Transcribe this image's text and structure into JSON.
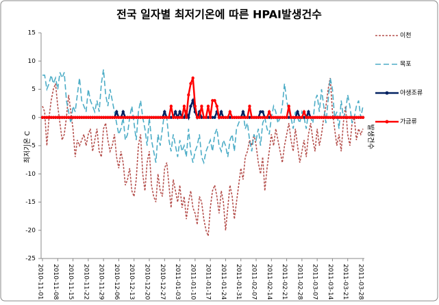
{
  "chart_data": {
    "type": "line",
    "title": "전국 일자별 최저기온에 따른 HPAI발생건수",
    "y_label": "최저기온 C",
    "y2_label": "발생건수",
    "ylim": [
      -25,
      15
    ],
    "yticks": [
      -25,
      -20,
      -15,
      -10,
      -5,
      0,
      5,
      10,
      15
    ],
    "categories": [
      "2010-11-01",
      null,
      null,
      null,
      null,
      null,
      null,
      "2010-11-08",
      null,
      null,
      null,
      null,
      null,
      null,
      "2010-11-15",
      null,
      null,
      null,
      null,
      null,
      null,
      "2010-11-22",
      null,
      null,
      null,
      null,
      null,
      null,
      "2010-11-29",
      null,
      null,
      null,
      null,
      null,
      null,
      "2010-12-06",
      null,
      null,
      null,
      null,
      null,
      null,
      "2010-12-13",
      null,
      null,
      null,
      null,
      null,
      null,
      "2010-12-20",
      null,
      null,
      null,
      null,
      null,
      null,
      "2010-12-27",
      null,
      null,
      null,
      null,
      null,
      null,
      "2011-01-03",
      null,
      null,
      null,
      null,
      null,
      null,
      "2011-01-10",
      null,
      null,
      null,
      null,
      null,
      null,
      "2011-01-17",
      null,
      null,
      null,
      null,
      null,
      null,
      "2011-01-24",
      null,
      null,
      null,
      null,
      null,
      null,
      "2011-01-31",
      null,
      null,
      null,
      null,
      null,
      null,
      "2011-02-07",
      null,
      null,
      null,
      null,
      null,
      null,
      "2011-02-14",
      null,
      null,
      null,
      null,
      null,
      null,
      "2011-02-21",
      null,
      null,
      null,
      null,
      null,
      null,
      "2011-02-28",
      null,
      null,
      null,
      null,
      null,
      null,
      "2011-03-07",
      null,
      null,
      null,
      null,
      null,
      null,
      "2011-03-14",
      null,
      null,
      null,
      null,
      null,
      null,
      "2011-03-21",
      null,
      null,
      null,
      null,
      null,
      null,
      "2011-03-28"
    ],
    "series": [
      {
        "name": "이천",
        "color": "#b5504d",
        "dash": "dashed",
        "marker": false,
        "values": [
          2,
          1,
          -5,
          0,
          3,
          5,
          6,
          2,
          -1,
          -4,
          -3,
          0,
          4,
          1,
          -2,
          -7,
          -4,
          -5,
          -4,
          -3,
          -5,
          -3,
          -2,
          -6,
          -4,
          -2,
          -6,
          -7,
          -2,
          -1,
          -4,
          -6,
          -5,
          -3,
          -7,
          -9,
          -6,
          -8,
          -12,
          -11,
          -9,
          -13,
          -14,
          -11,
          -5,
          -3,
          -10,
          -13,
          -8,
          -6,
          -12,
          -14,
          -15,
          -10,
          -13,
          -14,
          -9,
          -8,
          -12,
          -16,
          -11,
          -13,
          -15,
          -12,
          -16,
          -14,
          -18,
          -15,
          -13,
          -16,
          -17,
          -19,
          -14,
          -15,
          -18,
          -20,
          -21,
          -16,
          -13,
          -12,
          -14,
          -17,
          -13,
          -15,
          -20,
          -16,
          -12,
          -14,
          -18,
          -15,
          -12,
          -9,
          -11,
          -7,
          -6,
          -4,
          -5,
          -3,
          -5,
          -8,
          -10,
          -7,
          -13,
          -9,
          -6,
          -3,
          -5,
          -2,
          -4,
          -6,
          -8,
          -5,
          -3,
          -1,
          -4,
          -6,
          -2,
          -5,
          -8,
          -6,
          -4,
          -7,
          -3,
          -1,
          -4,
          -6,
          -2,
          -5,
          -3,
          0,
          2,
          5,
          7,
          1,
          -2,
          -5,
          -3,
          -6,
          -1,
          2,
          -3,
          -5,
          -1,
          0,
          -4,
          -2,
          -3,
          -2
        ]
      },
      {
        "name": "목포",
        "color": "#4bacc6",
        "dash": "longdash",
        "marker": false,
        "values": [
          7.5,
          7.5,
          5,
          6,
          7.5,
          6,
          7,
          5,
          8,
          7,
          8,
          3,
          1,
          -1,
          2,
          1,
          4,
          7,
          3,
          2,
          1,
          5,
          3,
          2,
          1,
          3,
          1,
          6,
          8.5,
          4,
          2,
          5,
          3,
          1,
          -1,
          -3,
          -2,
          0,
          -4,
          -3,
          0,
          2,
          -1,
          -4,
          1,
          3,
          0,
          -2,
          -5,
          0,
          -4,
          -6,
          -8,
          -3,
          -5,
          -2,
          1,
          0,
          -4,
          -6,
          -3,
          -5,
          -7,
          -4,
          -6,
          -5,
          -7,
          -2,
          -6,
          -8,
          -6,
          -5,
          -3,
          -7,
          -8,
          -6,
          -5,
          -4,
          -6,
          -3,
          -2,
          -5,
          -6,
          -4,
          -5,
          -7,
          -4,
          -3,
          -6,
          -2,
          -1,
          0,
          1,
          -2,
          -1,
          -4,
          -6,
          -3,
          -4,
          -2,
          -5,
          -1,
          0,
          -2,
          -3,
          0,
          2,
          1,
          -1,
          0,
          2,
          6,
          3,
          1,
          0,
          -2,
          1,
          0,
          -1,
          1,
          0,
          -2,
          1,
          0,
          -1,
          3,
          4,
          1,
          5,
          2,
          -1,
          3,
          7,
          5,
          0,
          1,
          -2,
          3,
          0,
          1,
          4,
          2,
          -1,
          0,
          2,
          3,
          0,
          2
        ]
      },
      {
        "name": "야생조류",
        "color": "#002060",
        "dash": "solid",
        "marker": true,
        "values": [
          0,
          0,
          0,
          0,
          0,
          0,
          0,
          0,
          0,
          0,
          0,
          0,
          0,
          0,
          0,
          0,
          0,
          0,
          0,
          0,
          0,
          0,
          0,
          0,
          0,
          0,
          0,
          0,
          0,
          0,
          0,
          0,
          0,
          0,
          1,
          0,
          0,
          1,
          0,
          0,
          0,
          0,
          0,
          0,
          0,
          0,
          0,
          0,
          0,
          0,
          0,
          0,
          0,
          0,
          0,
          0,
          1,
          0,
          0,
          0,
          0,
          1,
          0,
          1,
          0,
          0,
          1,
          0,
          2,
          3,
          1,
          0,
          1,
          0,
          0,
          0,
          0,
          0,
          0,
          0,
          1,
          0,
          1,
          0,
          0,
          0,
          0,
          0,
          0,
          0,
          0,
          0,
          1,
          0,
          0,
          0,
          0,
          0,
          0,
          0,
          1,
          1,
          0,
          0,
          0,
          0,
          0,
          0,
          0,
          0,
          0,
          0,
          0,
          0,
          0,
          0,
          0,
          1,
          0,
          0,
          0,
          0,
          1,
          0,
          0,
          0,
          0,
          0,
          0,
          0,
          0,
          0,
          0,
          0,
          0,
          0,
          0,
          0,
          0,
          0,
          0,
          0,
          0,
          0,
          0,
          0,
          0,
          0
        ]
      },
      {
        "name": "가금류",
        "color": "#ff0000",
        "dash": "solid",
        "marker": true,
        "values": [
          0,
          0,
          0,
          0,
          0,
          0,
          0,
          0,
          0,
          0,
          0,
          0,
          0,
          0,
          0,
          0,
          0,
          0,
          0,
          0,
          0,
          0,
          0,
          0,
          0,
          0,
          0,
          0,
          0,
          0,
          0,
          0,
          0,
          0,
          0,
          0,
          0,
          0,
          0,
          0,
          0,
          0,
          0,
          0,
          0,
          0,
          0,
          0,
          0,
          0,
          0,
          0,
          0,
          0,
          0,
          0,
          0,
          0,
          0,
          2,
          0,
          0,
          0,
          0,
          0,
          2,
          0,
          4,
          6,
          7,
          2,
          0,
          0,
          2,
          0,
          0,
          2,
          0,
          3,
          3,
          2,
          0,
          0,
          0,
          0,
          0,
          1,
          0,
          0,
          0,
          0,
          0,
          0,
          0,
          0,
          2,
          0,
          0,
          0,
          0,
          0,
          0,
          0,
          0,
          1,
          0,
          0,
          0,
          0,
          0,
          0,
          0,
          0,
          2,
          0,
          0,
          0,
          0,
          0,
          0,
          1,
          0,
          0,
          0,
          0,
          0,
          0,
          0,
          0,
          0,
          0,
          0,
          0,
          0,
          0,
          0,
          0,
          0,
          0,
          0,
          0,
          0,
          0,
          0,
          0,
          0,
          0,
          0
        ]
      }
    ]
  }
}
